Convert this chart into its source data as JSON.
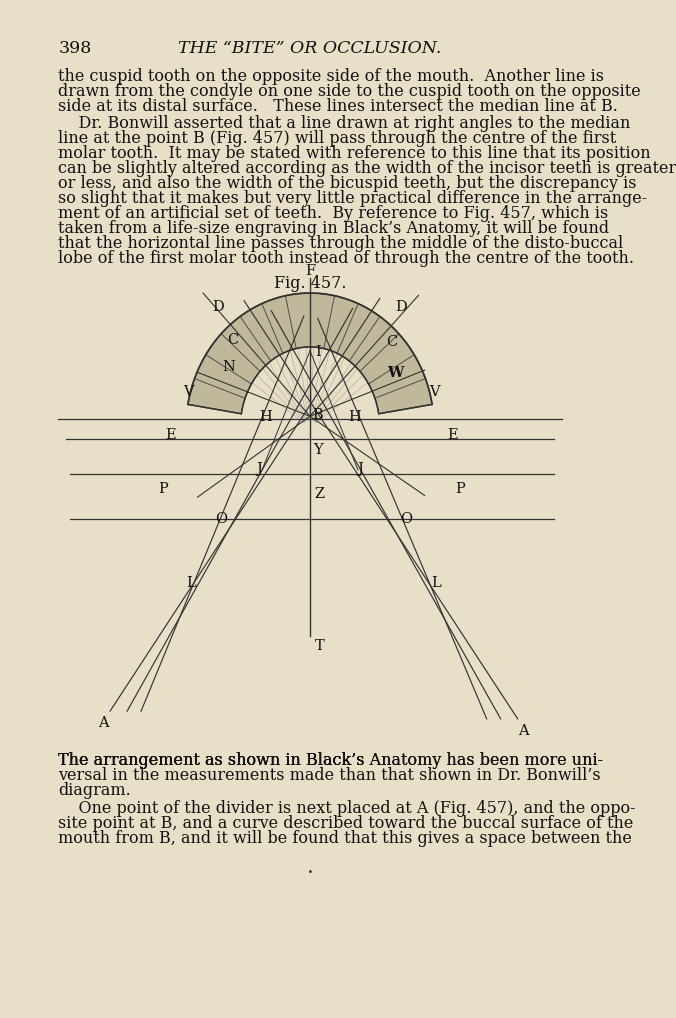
{
  "bg_color": "#e8dfc8",
  "page_number": "398",
  "header_title": "THE “BITE” OR OCCLUSION.",
  "para1_lines": [
    "the cuspid tooth on the opposite side of the mouth.  Another line is",
    "drawn from the condyle on one side to the cuspid tooth on the opposite",
    "side at its distal surface.   These lines intersect the median line at B."
  ],
  "para2_lines": [
    "    Dr. Bonwill asserted that a line drawn at right angles to the median",
    "line at the point B (Fig. 457) will pass through the centre of the first",
    "molar tooth.  It may be stated with reference to this line that its position",
    "can be slightly altered according as the width of the incisor teeth is greater",
    "or less, and also the width of the bicuspid teeth, but the discrepancy is",
    "so slight that it makes but very little practical difference in the arrange-",
    "ment of an artificial set of teeth.  By reference to Fig. 457, which is",
    "taken from a life-size engraving in Black’s Anatomy, it will be found",
    "that the horizontal line passes through the middle of the disto-buccal",
    "lobe of the first molar tooth instead of through the centre of the tooth."
  ],
  "fig_caption": "Fig. 457.",
  "fig_label_F": "F",
  "para3_lines": [
    "The arrangement as shown in Black’s Anatomy has been more uni-",
    "versal in the measurements made than that shown in Dr. Bonwill’s",
    "diagram."
  ],
  "para4_lines": [
    "    One point of the divider is next placed at A (Fig. 457), and the oppo-",
    "site point at B, and a curve described toward the buccal surface of the",
    "mouth from B, and it will be found that this gives a space between the"
  ],
  "text_color": "#111111",
  "line_color": "#333333",
  "arch_fill": "#c0b89a",
  "arch_inner_fill": "#a09080",
  "text_fs": 11.5,
  "header_fs": 12.5,
  "label_fs": 10.5
}
